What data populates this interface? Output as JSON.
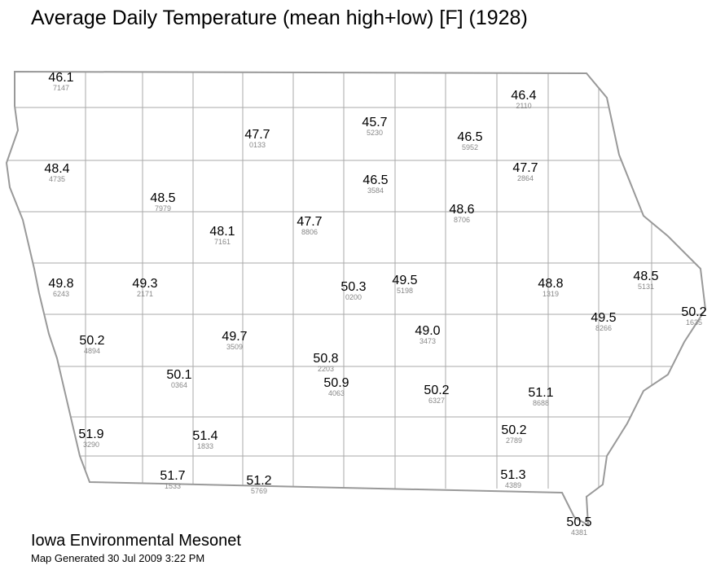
{
  "title": "Average Daily Temperature (mean high+low) [F] (1928)",
  "stations": [
    {
      "value": "46.1",
      "id": "7147"
    },
    {
      "value": "46.4",
      "id": "2110"
    },
    {
      "value": "45.7",
      "id": "5230"
    },
    {
      "value": "47.7",
      "id": "0133"
    },
    {
      "value": "46.5",
      "id": "5952"
    },
    {
      "value": "48.4",
      "id": "4735"
    },
    {
      "value": "46.5",
      "id": "3584"
    },
    {
      "value": "47.7",
      "id": "2864"
    },
    {
      "value": "48.5",
      "id": "7979"
    },
    {
      "value": "48.6",
      "id": "8706"
    },
    {
      "value": "48.1",
      "id": "7161"
    },
    {
      "value": "47.7",
      "id": "8806"
    },
    {
      "value": "49.8",
      "id": "6243"
    },
    {
      "value": "49.3",
      "id": "2171"
    },
    {
      "value": "50.3",
      "id": "0200"
    },
    {
      "value": "49.5",
      "id": "5198"
    },
    {
      "value": "48.8",
      "id": "1319"
    },
    {
      "value": "48.5",
      "id": "5131"
    },
    {
      "value": "50.2",
      "id": "1635"
    },
    {
      "value": "49.5",
      "id": "8266"
    },
    {
      "value": "50.2",
      "id": "4894"
    },
    {
      "value": "49.7",
      "id": "3509"
    },
    {
      "value": "49.0",
      "id": "3473"
    },
    {
      "value": "50.8",
      "id": "2203"
    },
    {
      "value": "50.1",
      "id": "0364"
    },
    {
      "value": "50.9",
      "id": "4063"
    },
    {
      "value": "50.2",
      "id": "6327"
    },
    {
      "value": "51.1",
      "id": "8688"
    },
    {
      "value": "51.9",
      "id": "3290"
    },
    {
      "value": "51.4",
      "id": "1833"
    },
    {
      "value": "50.2",
      "id": "2789"
    },
    {
      "value": "51.7",
      "id": "1533"
    },
    {
      "value": "51.2",
      "id": "5769"
    },
    {
      "value": "51.3",
      "id": "4389"
    },
    {
      "value": "50.5",
      "id": "4381"
    }
  ],
  "footer": {
    "org": "Iowa Environmental Mesonet",
    "generated": "Map Generated 30 Jul 2009 3:22 PM"
  }
}
